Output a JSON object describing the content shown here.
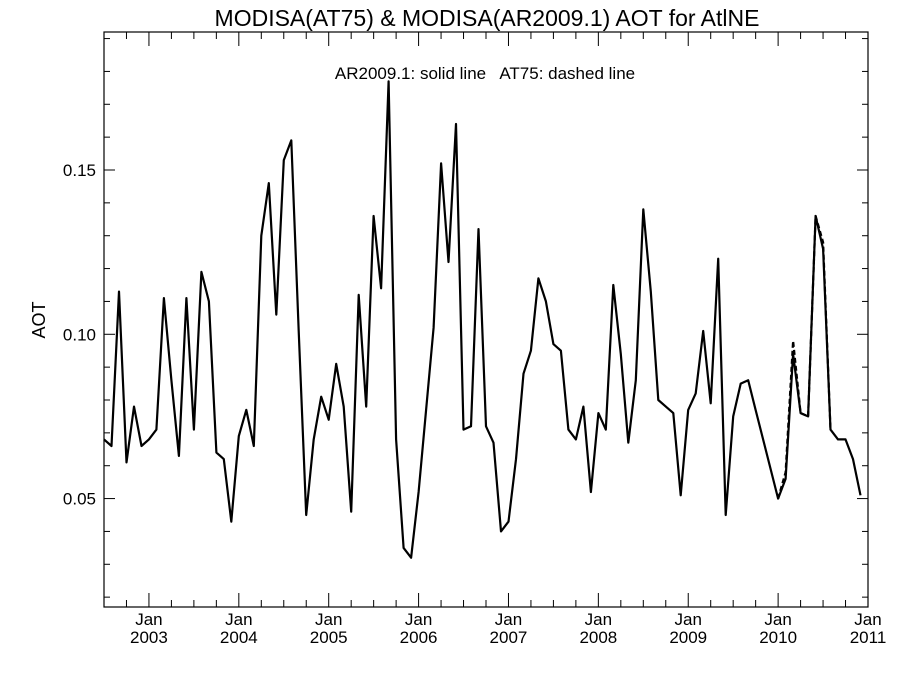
{
  "chart_data": {
    "type": "line",
    "title": "MODISA(AT75) & MODISA(AR2009.1)  AOT for AtlNE",
    "annotation": "AR2009.1: solid line   AT75: dashed line",
    "ylabel": "AOT",
    "xlabel": "",
    "ylim": [
      0.017,
      0.192
    ],
    "xlim": [
      "2002-07-01",
      "2011-01-01"
    ],
    "yticks": [
      {
        "value": 0.05,
        "label": "0.05"
      },
      {
        "value": 0.1,
        "label": "0.10"
      },
      {
        "value": 0.15,
        "label": "0.15"
      }
    ],
    "xticks": [
      {
        "date": "2003-01-01",
        "month": "Jan",
        "year": "2003"
      },
      {
        "date": "2004-01-01",
        "month": "Jan",
        "year": "2004"
      },
      {
        "date": "2005-01-01",
        "month": "Jan",
        "year": "2005"
      },
      {
        "date": "2006-01-01",
        "month": "Jan",
        "year": "2006"
      },
      {
        "date": "2007-01-01",
        "month": "Jan",
        "year": "2007"
      },
      {
        "date": "2008-01-01",
        "month": "Jan",
        "year": "2008"
      },
      {
        "date": "2009-01-01",
        "month": "Jan",
        "year": "2009"
      },
      {
        "date": "2010-01-01",
        "month": "Jan",
        "year": "2010"
      },
      {
        "date": "2011-01-01",
        "month": "Jan",
        "year": "2011"
      }
    ],
    "series": [
      {
        "label": "AR2009.1",
        "style": "solid",
        "color": "#000000",
        "points": [
          [
            "2002-07",
            0.068
          ],
          [
            "2002-08",
            0.066
          ],
          [
            "2002-09",
            0.113
          ],
          [
            "2002-10",
            0.061
          ],
          [
            "2002-11",
            0.078
          ],
          [
            "2002-12",
            0.066
          ],
          [
            "2003-01",
            0.068
          ],
          [
            "2003-02",
            0.071
          ],
          [
            "2003-03",
            0.111
          ],
          [
            "2003-04",
            0.086
          ],
          [
            "2003-05",
            0.063
          ],
          [
            "2003-06",
            0.111
          ],
          [
            "2003-07",
            0.071
          ],
          [
            "2003-08",
            0.119
          ],
          [
            "2003-09",
            0.11
          ],
          [
            "2003-10",
            0.064
          ],
          [
            "2003-11",
            0.062
          ],
          [
            "2003-12",
            0.043
          ],
          [
            "2004-01",
            0.069
          ],
          [
            "2004-02",
            0.077
          ],
          [
            "2004-03",
            0.066
          ],
          [
            "2004-04",
            0.13
          ],
          [
            "2004-05",
            0.146
          ],
          [
            "2004-06",
            0.106
          ],
          [
            "2004-07",
            0.153
          ],
          [
            "2004-08",
            0.159
          ],
          [
            "2004-09",
            0.101
          ],
          [
            "2004-10",
            0.045
          ],
          [
            "2004-11",
            0.068
          ],
          [
            "2004-12",
            0.081
          ],
          [
            "2005-01",
            0.074
          ],
          [
            "2005-02",
            0.091
          ],
          [
            "2005-03",
            0.078
          ],
          [
            "2005-04",
            0.046
          ],
          [
            "2005-05",
            0.112
          ],
          [
            "2005-06",
            0.078
          ],
          [
            "2005-07",
            0.136
          ],
          [
            "2005-08",
            0.114
          ],
          [
            "2005-09",
            0.177
          ],
          [
            "2005-10",
            0.068
          ],
          [
            "2005-11",
            0.035
          ],
          [
            "2005-12",
            0.032
          ],
          [
            "2006-01",
            0.052
          ],
          [
            "2006-02",
            0.077
          ],
          [
            "2006-03",
            0.102
          ],
          [
            "2006-04",
            0.152
          ],
          [
            "2006-05",
            0.122
          ],
          [
            "2006-06",
            0.164
          ],
          [
            "2006-07",
            0.071
          ],
          [
            "2006-08",
            0.072
          ],
          [
            "2006-09",
            0.132
          ],
          [
            "2006-10",
            0.072
          ],
          [
            "2006-11",
            0.067
          ],
          [
            "2006-12",
            0.04
          ],
          [
            "2007-01",
            0.043
          ],
          [
            "2007-02",
            0.062
          ],
          [
            "2007-03",
            0.088
          ],
          [
            "2007-04",
            0.095
          ],
          [
            "2007-05",
            0.117
          ],
          [
            "2007-06",
            0.11
          ],
          [
            "2007-07",
            0.097
          ],
          [
            "2007-08",
            0.095
          ],
          [
            "2007-09",
            0.071
          ],
          [
            "2007-10",
            0.068
          ],
          [
            "2007-11",
            0.078
          ],
          [
            "2007-12",
            0.052
          ],
          [
            "2008-01",
            0.076
          ],
          [
            "2008-02",
            0.071
          ],
          [
            "2008-03",
            0.115
          ],
          [
            "2008-04",
            0.094
          ],
          [
            "2008-05",
            0.067
          ],
          [
            "2008-06",
            0.086
          ],
          [
            "2008-07",
            0.138
          ],
          [
            "2008-08",
            0.113
          ],
          [
            "2008-09",
            0.08
          ],
          [
            "2008-10",
            0.078
          ],
          [
            "2008-11",
            0.076
          ],
          [
            "2008-12",
            0.051
          ],
          [
            "2009-01",
            0.077
          ],
          [
            "2009-02",
            0.082
          ],
          [
            "2009-03",
            0.101
          ],
          [
            "2009-04",
            0.079
          ],
          [
            "2009-05",
            0.123
          ],
          [
            "2009-06",
            0.045
          ],
          [
            "2009-07",
            0.075
          ],
          [
            "2009-08",
            0.085
          ],
          [
            "2009-09",
            0.086
          ],
          [
            "2009-10",
            0.077
          ],
          [
            "2009-11",
            0.068
          ],
          [
            "2009-12",
            0.059
          ],
          [
            "2010-01",
            0.05
          ],
          [
            "2010-02",
            0.056
          ],
          [
            "2010-03",
            0.094
          ],
          [
            "2010-04",
            0.076
          ],
          [
            "2010-05",
            0.075
          ],
          [
            "2010-06",
            0.136
          ],
          [
            "2010-07",
            0.126
          ],
          [
            "2010-08",
            0.071
          ],
          [
            "2010-09",
            0.068
          ],
          [
            "2010-10",
            0.068
          ],
          [
            "2010-11",
            0.062
          ],
          [
            "2010-12",
            0.051
          ]
        ]
      },
      {
        "label": "AT75",
        "style": "dashed",
        "color": "#000000",
        "points": [
          [
            "2010-01",
            0.05
          ],
          [
            "2010-02",
            0.058
          ],
          [
            "2010-03",
            0.098
          ],
          [
            "2010-04",
            0.076
          ],
          [
            "2010-05",
            0.075
          ],
          [
            "2010-06",
            0.136
          ],
          [
            "2010-07",
            0.128
          ],
          [
            "2010-08",
            0.071
          ]
        ]
      }
    ]
  }
}
